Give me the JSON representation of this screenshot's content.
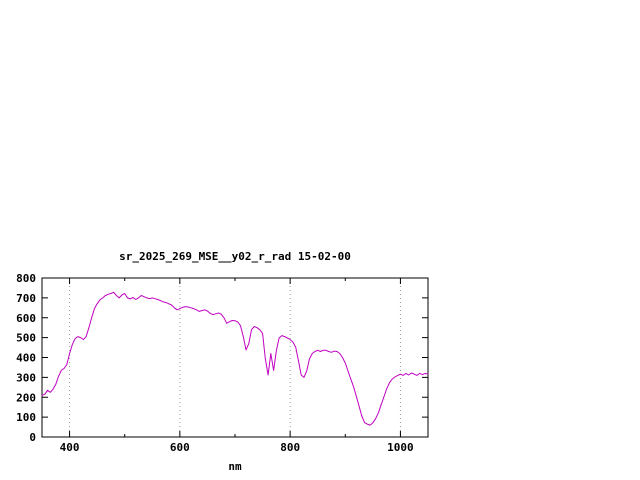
{
  "chart_data": {
    "type": "line",
    "title": "sr_2025_269_MSE__y02_r_rad 15-02-00",
    "xlabel": "nm",
    "ylabel": "",
    "xlim": [
      350,
      1050
    ],
    "ylim": [
      0,
      800
    ],
    "x_ticks": [
      400,
      600,
      800,
      1000
    ],
    "x_minor_ticks": [
      500,
      700,
      900
    ],
    "y_ticks": [
      0,
      100,
      200,
      300,
      400,
      500,
      600,
      700,
      800
    ],
    "grid": "vertical-dotted-only",
    "legend": "none",
    "grid_color": "#999999",
    "line_color": "#c000c0",
    "border_color": "#000000",
    "background_color": "#ffffff",
    "series": [
      {
        "name": "sr_2025_269_MSE__y02_r_rad",
        "points": [
          [
            350,
            210
          ],
          [
            355,
            215
          ],
          [
            360,
            235
          ],
          [
            365,
            225
          ],
          [
            370,
            240
          ],
          [
            375,
            265
          ],
          [
            380,
            305
          ],
          [
            385,
            335
          ],
          [
            390,
            345
          ],
          [
            395,
            365
          ],
          [
            400,
            420
          ],
          [
            405,
            465
          ],
          [
            410,
            495
          ],
          [
            415,
            505
          ],
          [
            420,
            500
          ],
          [
            425,
            490
          ],
          [
            430,
            505
          ],
          [
            435,
            550
          ],
          [
            440,
            600
          ],
          [
            445,
            645
          ],
          [
            450,
            670
          ],
          [
            455,
            690
          ],
          [
            460,
            700
          ],
          [
            465,
            712
          ],
          [
            470,
            718
          ],
          [
            475,
            722
          ],
          [
            480,
            728
          ],
          [
            485,
            712
          ],
          [
            490,
            700
          ],
          [
            495,
            715
          ],
          [
            500,
            722
          ],
          [
            505,
            700
          ],
          [
            510,
            695
          ],
          [
            515,
            702
          ],
          [
            520,
            692
          ],
          [
            525,
            700
          ],
          [
            530,
            712
          ],
          [
            535,
            706
          ],
          [
            540,
            700
          ],
          [
            545,
            696
          ],
          [
            550,
            700
          ],
          [
            555,
            696
          ],
          [
            560,
            692
          ],
          [
            565,
            686
          ],
          [
            570,
            680
          ],
          [
            575,
            676
          ],
          [
            580,
            670
          ],
          [
            585,
            664
          ],
          [
            590,
            650
          ],
          [
            595,
            640
          ],
          [
            600,
            646
          ],
          [
            605,
            652
          ],
          [
            610,
            656
          ],
          [
            615,
            654
          ],
          [
            620,
            650
          ],
          [
            625,
            646
          ],
          [
            630,
            640
          ],
          [
            635,
            632
          ],
          [
            640,
            636
          ],
          [
            645,
            640
          ],
          [
            650,
            634
          ],
          [
            655,
            622
          ],
          [
            660,
            616
          ],
          [
            665,
            620
          ],
          [
            670,
            624
          ],
          [
            675,
            618
          ],
          [
            680,
            600
          ],
          [
            685,
            572
          ],
          [
            690,
            580
          ],
          [
            695,
            586
          ],
          [
            700,
            585
          ],
          [
            705,
            578
          ],
          [
            710,
            560
          ],
          [
            715,
            505
          ],
          [
            720,
            438
          ],
          [
            725,
            470
          ],
          [
            730,
            540
          ],
          [
            735,
            556
          ],
          [
            740,
            550
          ],
          [
            745,
            540
          ],
          [
            750,
            520
          ],
          [
            755,
            395
          ],
          [
            760,
            312
          ],
          [
            765,
            420
          ],
          [
            770,
            335
          ],
          [
            775,
            435
          ],
          [
            780,
            498
          ],
          [
            785,
            510
          ],
          [
            790,
            505
          ],
          [
            795,
            498
          ],
          [
            800,
            490
          ],
          [
            805,
            478
          ],
          [
            810,
            452
          ],
          [
            815,
            385
          ],
          [
            820,
            312
          ],
          [
            825,
            300
          ],
          [
            830,
            332
          ],
          [
            835,
            392
          ],
          [
            840,
            420
          ],
          [
            845,
            430
          ],
          [
            850,
            436
          ],
          [
            855,
            430
          ],
          [
            860,
            436
          ],
          [
            865,
            436
          ],
          [
            870,
            430
          ],
          [
            875,
            426
          ],
          [
            880,
            432
          ],
          [
            885,
            430
          ],
          [
            890,
            420
          ],
          [
            895,
            400
          ],
          [
            900,
            372
          ],
          [
            905,
            332
          ],
          [
            910,
            292
          ],
          [
            915,
            252
          ],
          [
            920,
            205
          ],
          [
            925,
            155
          ],
          [
            930,
            105
          ],
          [
            935,
            72
          ],
          [
            940,
            65
          ],
          [
            945,
            60
          ],
          [
            950,
            72
          ],
          [
            955,
            92
          ],
          [
            960,
            122
          ],
          [
            965,
            162
          ],
          [
            970,
            202
          ],
          [
            975,
            242
          ],
          [
            980,
            272
          ],
          [
            985,
            292
          ],
          [
            990,
            302
          ],
          [
            995,
            310
          ],
          [
            1000,
            316
          ],
          [
            1005,
            310
          ],
          [
            1010,
            320
          ],
          [
            1015,
            312
          ],
          [
            1020,
            322
          ],
          [
            1025,
            316
          ],
          [
            1030,
            310
          ],
          [
            1035,
            320
          ],
          [
            1040,
            314
          ],
          [
            1045,
            320
          ],
          [
            1050,
            316
          ]
        ]
      }
    ]
  }
}
